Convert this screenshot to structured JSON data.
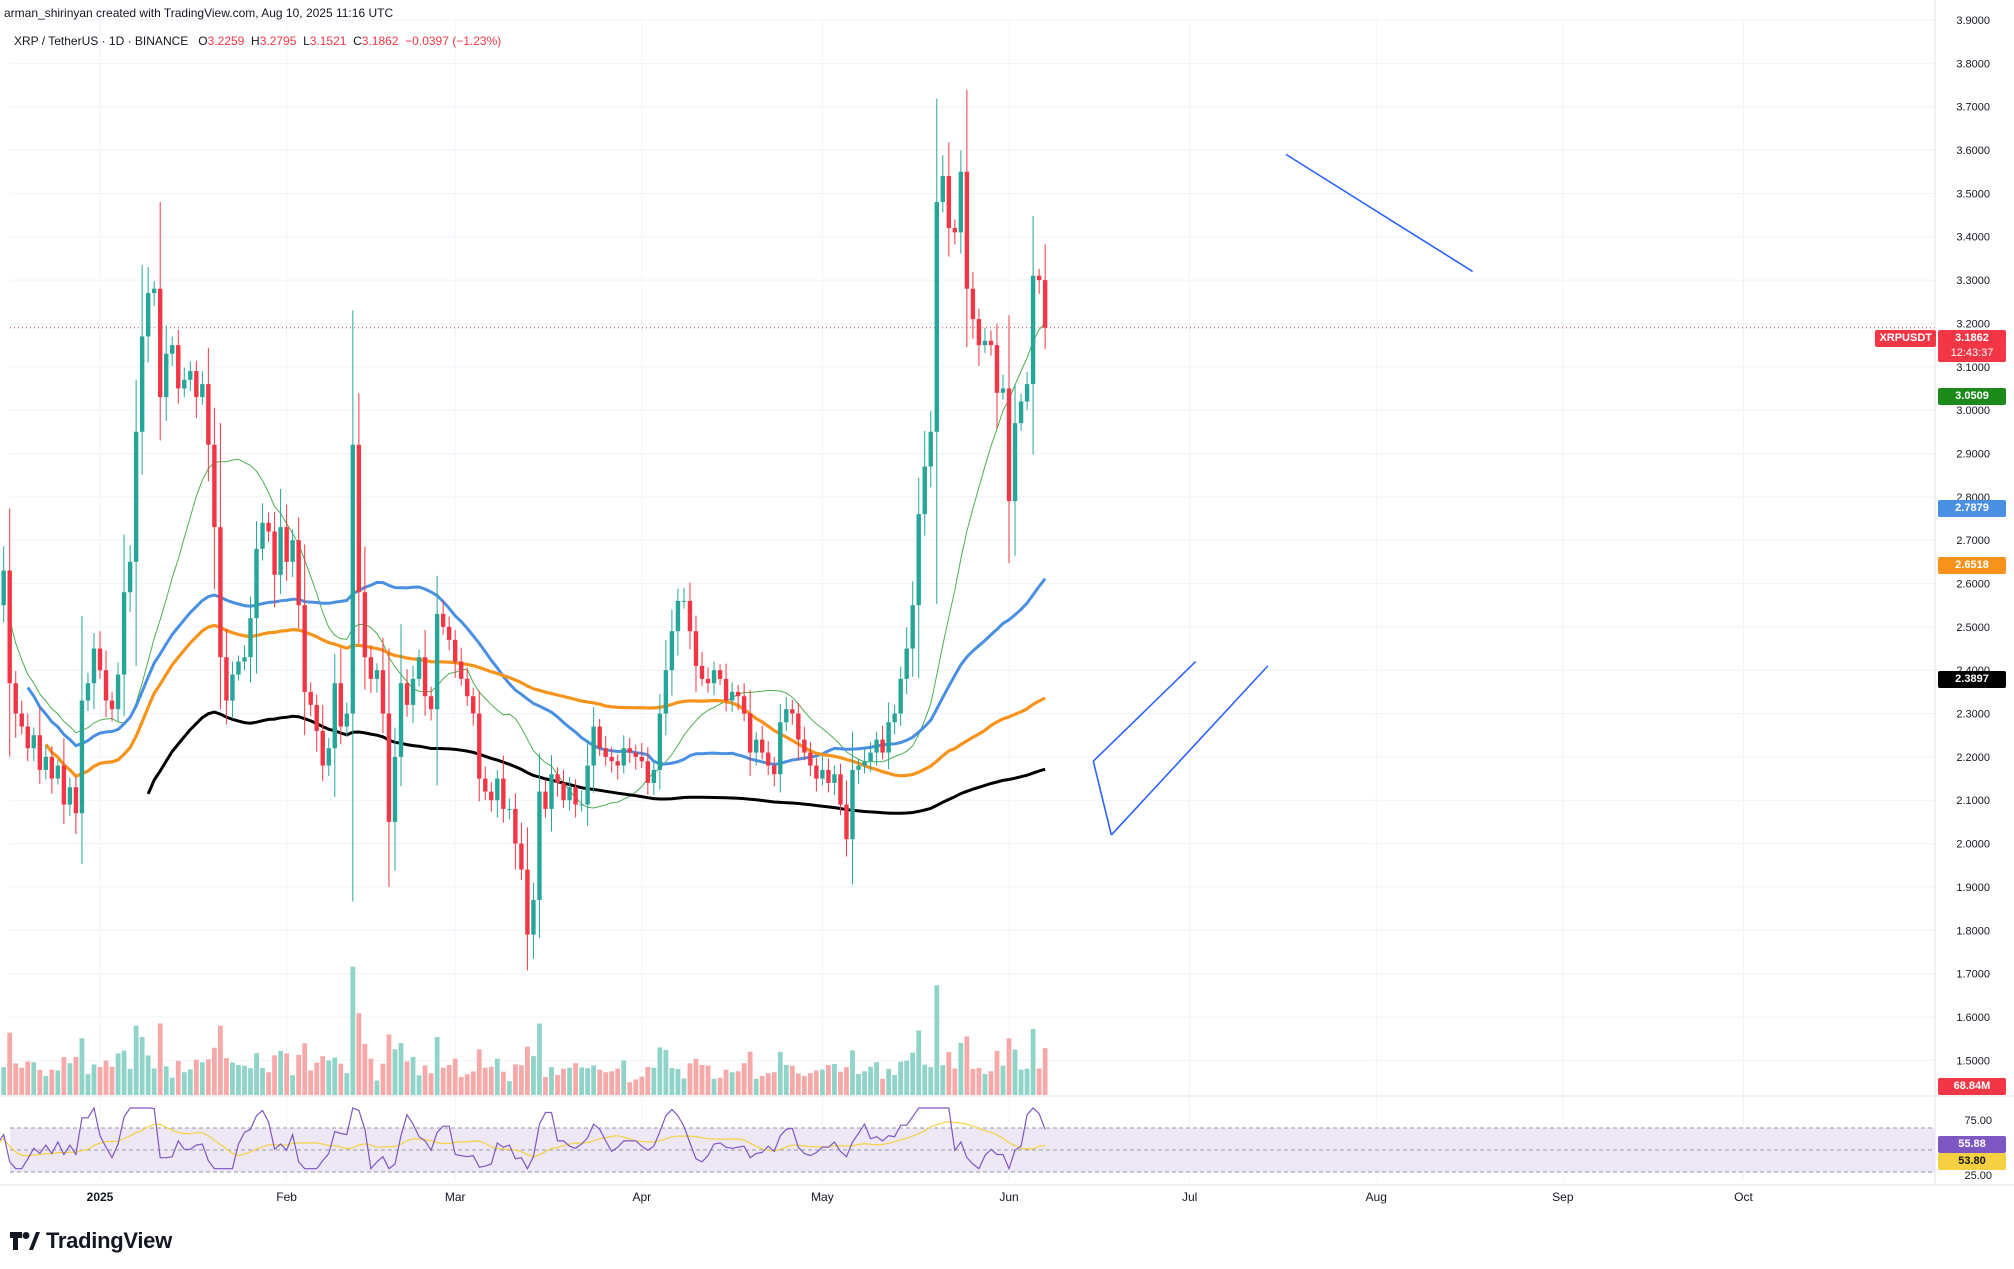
{
  "header": {
    "credit": "arman_shirinyan created with TradingView.com, Aug 10, 2025 11:16 UTC",
    "symbol": "XRP / TetherUS · 1D · BINANCE",
    "open_label": "O",
    "open": "3.2259",
    "high_label": "H",
    "high": "3.2795",
    "low_label": "L",
    "low": "3.1521",
    "close_label": "C",
    "close": "3.1862",
    "change": "−0.0397 (−1.23%)"
  },
  "badges": {
    "symbol": "XRPUSDT",
    "price": "3.1862",
    "countdown": "12:43:37",
    "ma_green": "3.0509",
    "ma_blue": "2.7879",
    "ma_orange": "2.6518",
    "ma_black": "2.3897",
    "volume": "68.84M",
    "rsi": "55.88",
    "rsi_ma": "53.80",
    "rsi_top": "75.00",
    "rsi_bottom": "25.00"
  },
  "logo": {
    "text": "TradingView"
  },
  "colors": {
    "up": "#26a69a",
    "down": "#f23645",
    "ma_green": "#4caf50",
    "ma_blue": "#4a90e2",
    "ma_orange": "#f7931a",
    "ma_black": "#000000",
    "trend": "#2962ff",
    "rsi": "#7e57c2",
    "rsi_ma": "#f5d142"
  },
  "chart_data": {
    "type": "candlestick",
    "ylim": [
      1.42,
      3.9
    ],
    "y_ticks": [
      "3.9000",
      "3.8000",
      "3.7000",
      "3.6000",
      "3.5000",
      "3.4000",
      "3.3000",
      "3.2000",
      "3.1000",
      "3.0000",
      "2.9000",
      "2.8000",
      "2.7000",
      "2.6000",
      "2.5000",
      "2.4000",
      "2.3000",
      "2.2000",
      "2.1000",
      "2.0000",
      "1.9000",
      "1.8000",
      "1.7000",
      "1.6000",
      "1.5000"
    ],
    "x_ticks": [
      {
        "label": "2025",
        "day": 0
      },
      {
        "label": "Feb",
        "day": 31
      },
      {
        "label": "Mar",
        "day": 59
      },
      {
        "label": "Apr",
        "day": 90
      },
      {
        "label": "May",
        "day": 120
      },
      {
        "label": "Jun",
        "day": 151
      },
      {
        "label": "Jul",
        "day": 181
      },
      {
        "label": "Aug",
        "day": 212
      },
      {
        "label": "Sep",
        "day": 243
      },
      {
        "label": "Oct",
        "day": 273
      }
    ],
    "first_day": -17,
    "closes": [
      2.55,
      2.63,
      2.37,
      2.3,
      2.27,
      2.22,
      2.25,
      2.17,
      2.2,
      2.15,
      2.18,
      2.09,
      2.13,
      2.07,
      2.33,
      2.37,
      2.45,
      2.4,
      2.33,
      2.31,
      2.39,
      2.58,
      2.65,
      2.95,
      3.17,
      3.27,
      3.28,
      3.03,
      3.13,
      3.15,
      3.05,
      3.07,
      3.09,
      3.03,
      3.06,
      2.92,
      2.73,
      2.43,
      2.33,
      2.39,
      2.42,
      2.43,
      2.52,
      2.68,
      2.74,
      2.72,
      2.62,
      2.73,
      2.65,
      2.7,
      2.55,
      2.35,
      2.32,
      2.26,
      2.18,
      2.22,
      2.37,
      2.27,
      2.3,
      2.92,
      2.58,
      2.43,
      2.38,
      2.4,
      2.3,
      2.05,
      2.2,
      2.37,
      2.32,
      2.38,
      2.43,
      2.34,
      2.31,
      2.53,
      2.5,
      2.47,
      2.42,
      2.38,
      2.34,
      2.3,
      2.15,
      2.12,
      2.1,
      2.15,
      2.08,
      2.08,
      2.0,
      1.94,
      1.79,
      1.87,
      2.12,
      2.08,
      2.16,
      2.14,
      2.1,
      2.13,
      2.09,
      2.09,
      2.18,
      2.27,
      2.22,
      2.2,
      2.19,
      2.18,
      2.22,
      2.21,
      2.2,
      2.19,
      2.14,
      2.17,
      2.3,
      2.4,
      2.49,
      2.56,
      2.56,
      2.49,
      2.41,
      2.38,
      2.37,
      2.4,
      2.38,
      2.33,
      2.35,
      2.34,
      2.3,
      2.21,
      2.24,
      2.21,
      2.18,
      2.16,
      2.28,
      2.31,
      2.3,
      2.24,
      2.21,
      2.18,
      2.15,
      2.17,
      2.14,
      2.16,
      2.09,
      2.01,
      2.17,
      2.18,
      2.19,
      2.21,
      2.24,
      2.21,
      2.28,
      2.3,
      2.38,
      2.45,
      2.55,
      2.76,
      2.87,
      2.95,
      3.48,
      3.54,
      3.42,
      3.41,
      3.55,
      3.28,
      3.21,
      3.15,
      3.16,
      3.15,
      3.04,
      3.05,
      2.79,
      2.97,
      3.02,
      3.06,
      3.31,
      3.3,
      3.19
    ],
    "rsi_range": [
      25,
      75
    ],
    "moving_averages": [
      "MA 20",
      "MA 50",
      "MA 100",
      "MA 200"
    ]
  }
}
